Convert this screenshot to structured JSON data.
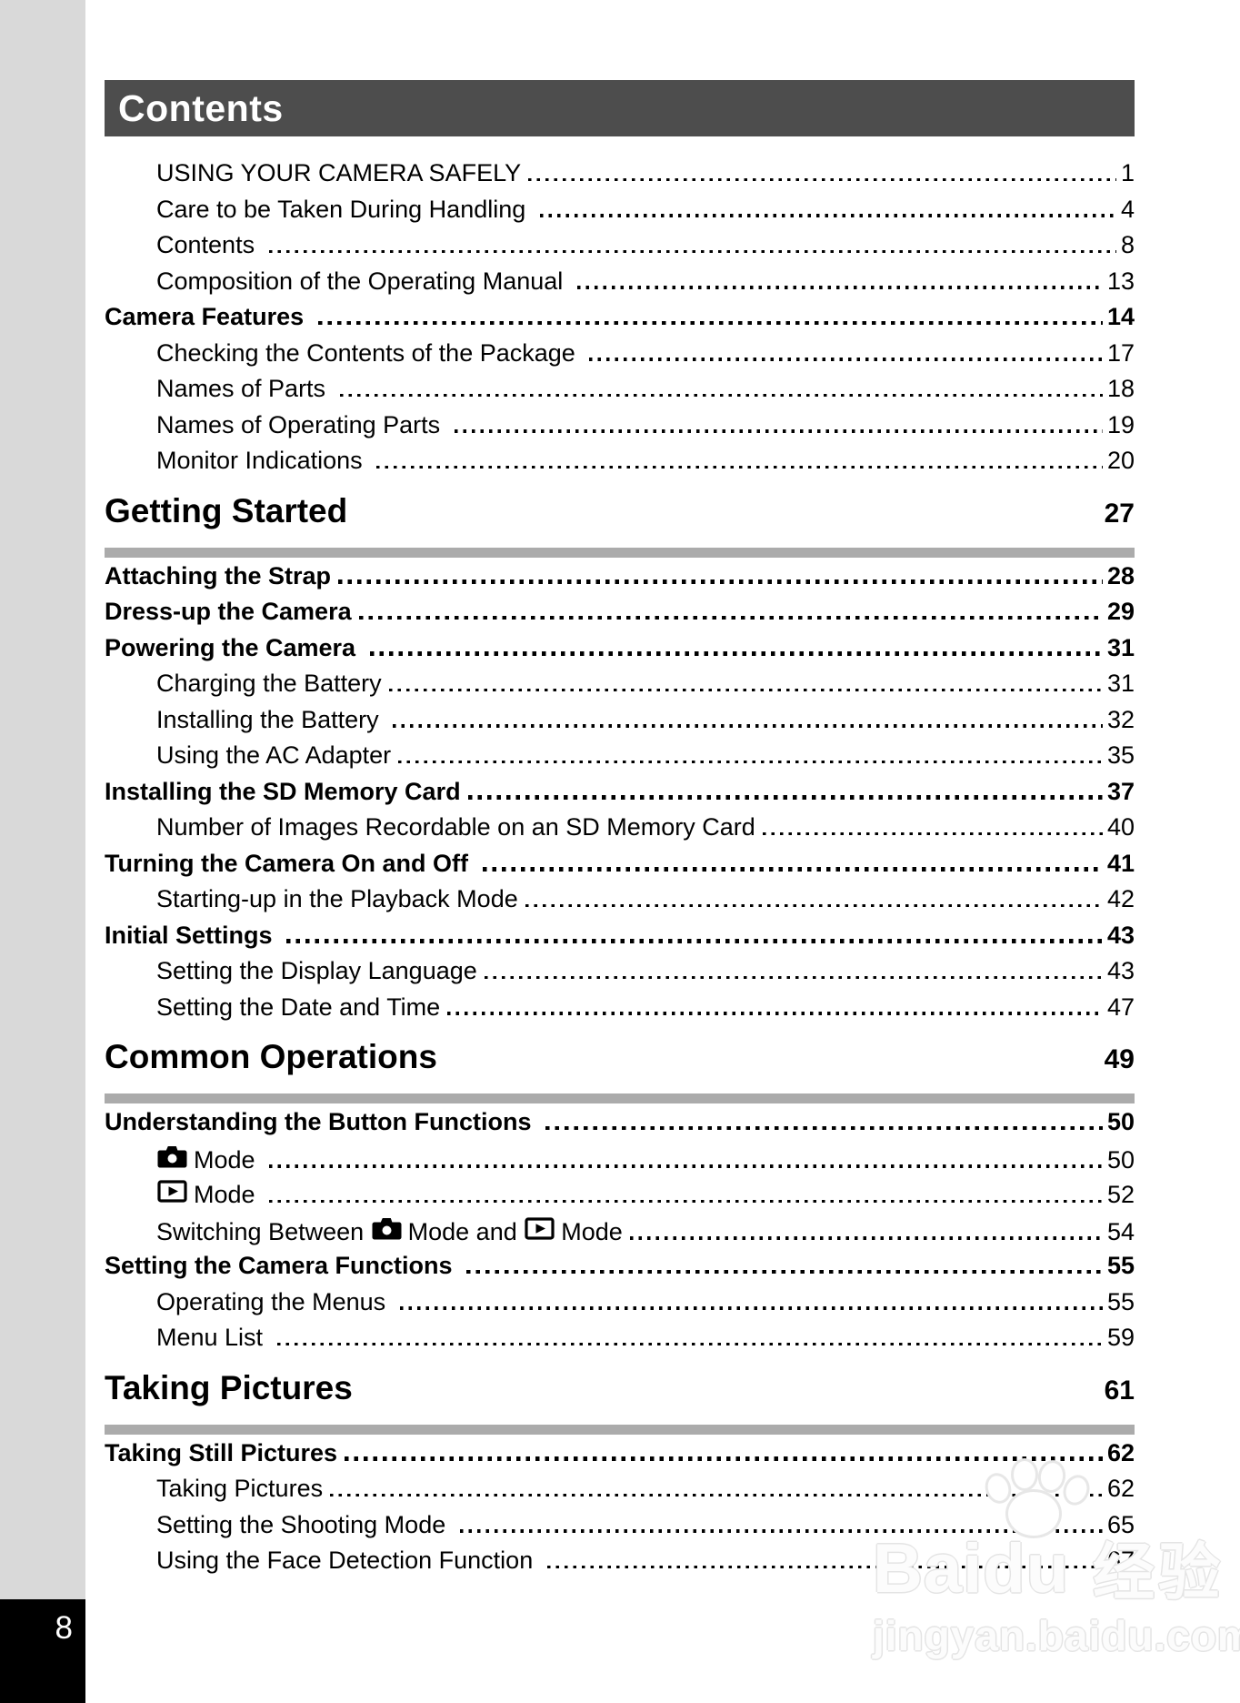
{
  "page": {
    "number": "8"
  },
  "header": {
    "title": "Contents"
  },
  "colors": {
    "header_bg": "#4d4d4d",
    "divider_bar": "#ababab",
    "sidebar_strip": "#d9d9d9",
    "page_number_box": "#000000",
    "text": "#000000"
  },
  "watermark": {
    "brand": "Baidu",
    "brand_cn": "经验",
    "url": "jingyan.baidu.com"
  },
  "toc": {
    "sections": [
      {
        "title": null,
        "page": null,
        "entries": [
          {
            "level": 2,
            "page": "1",
            "segments": [
              {
                "text": "USING YOUR CAMERA SAFELY"
              }
            ]
          },
          {
            "level": 2,
            "page": "4",
            "segments": [
              {
                "text": "Care to be Taken During Handling "
              }
            ]
          },
          {
            "level": 2,
            "page": "8",
            "segments": [
              {
                "text": "Contents "
              }
            ]
          },
          {
            "level": 2,
            "page": "13",
            "segments": [
              {
                "text": "Composition of the Operating Manual "
              }
            ]
          },
          {
            "level": 1,
            "page": "14",
            "segments": [
              {
                "text": "Camera Features "
              }
            ]
          },
          {
            "level": 2,
            "page": "17",
            "segments": [
              {
                "text": "Checking the Contents of the Package "
              }
            ]
          },
          {
            "level": 2,
            "page": "18",
            "segments": [
              {
                "text": "Names of Parts "
              }
            ]
          },
          {
            "level": 2,
            "page": "19",
            "segments": [
              {
                "text": "Names of Operating Parts "
              }
            ]
          },
          {
            "level": 2,
            "page": "20",
            "segments": [
              {
                "text": "Monitor Indications "
              }
            ]
          }
        ]
      },
      {
        "title": "Getting Started",
        "page": "27",
        "entries": [
          {
            "level": 1,
            "page": "28",
            "segments": [
              {
                "text": "Attaching the Strap"
              }
            ]
          },
          {
            "level": 1,
            "page": "29",
            "segments": [
              {
                "text": "Dress-up the Camera"
              }
            ]
          },
          {
            "level": 1,
            "page": "31",
            "segments": [
              {
                "text": "Powering the Camera "
              }
            ]
          },
          {
            "level": 2,
            "page": "31",
            "segments": [
              {
                "text": "Charging the Battery"
              }
            ]
          },
          {
            "level": 2,
            "page": "32",
            "segments": [
              {
                "text": "Installing the Battery "
              }
            ]
          },
          {
            "level": 2,
            "page": "35",
            "segments": [
              {
                "text": "Using the AC Adapter"
              }
            ]
          },
          {
            "level": 1,
            "page": "37",
            "segments": [
              {
                "text": "Installing the SD Memory Card"
              }
            ]
          },
          {
            "level": 2,
            "page": "40",
            "segments": [
              {
                "text": "Number of Images Recordable on an SD Memory Card"
              }
            ]
          },
          {
            "level": 1,
            "page": "41",
            "segments": [
              {
                "text": "Turning the Camera On and Off "
              }
            ]
          },
          {
            "level": 2,
            "page": "42",
            "segments": [
              {
                "text": "Starting-up in the Playback Mode"
              }
            ]
          },
          {
            "level": 1,
            "page": "43",
            "segments": [
              {
                "text": "Initial Settings "
              }
            ]
          },
          {
            "level": 2,
            "page": "43",
            "segments": [
              {
                "text": "Setting the Display Language"
              }
            ]
          },
          {
            "level": 2,
            "page": "47",
            "segments": [
              {
                "text": "Setting the Date and Time"
              }
            ]
          }
        ]
      },
      {
        "title": "Common Operations",
        "page": "49",
        "entries": [
          {
            "level": 1,
            "page": "50",
            "segments": [
              {
                "text": "Understanding the Button Functions "
              }
            ]
          },
          {
            "level": 2,
            "page": "50",
            "segments": [
              {
                "icon": "camera-mode-icon"
              },
              {
                "text": "Mode "
              }
            ]
          },
          {
            "level": 2,
            "page": "52",
            "segments": [
              {
                "icon": "playback-mode-icon"
              },
              {
                "text": "Mode "
              }
            ]
          },
          {
            "level": 2,
            "page": "54",
            "segments": [
              {
                "text": "Switching Between "
              },
              {
                "icon": "camera-mode-icon"
              },
              {
                "text": "Mode and "
              },
              {
                "icon": "playback-mode-icon"
              },
              {
                "text": "Mode"
              }
            ]
          },
          {
            "level": 1,
            "page": "55",
            "segments": [
              {
                "text": "Setting the Camera Functions "
              }
            ]
          },
          {
            "level": 2,
            "page": "55",
            "segments": [
              {
                "text": "Operating the Menus "
              }
            ]
          },
          {
            "level": 2,
            "page": "59",
            "segments": [
              {
                "text": "Menu List "
              }
            ]
          }
        ]
      },
      {
        "title": "Taking Pictures",
        "page": "61",
        "entries": [
          {
            "level": 1,
            "page": "62",
            "segments": [
              {
                "text": "Taking Still Pictures"
              }
            ]
          },
          {
            "level": 2,
            "page": "62",
            "segments": [
              {
                "text": "Taking Pictures"
              }
            ]
          },
          {
            "level": 2,
            "page": "65",
            "segments": [
              {
                "text": "Setting the Shooting Mode "
              }
            ]
          },
          {
            "level": 2,
            "page": "67",
            "segments": [
              {
                "text": "Using the Face Detection Function "
              }
            ]
          }
        ]
      }
    ]
  }
}
